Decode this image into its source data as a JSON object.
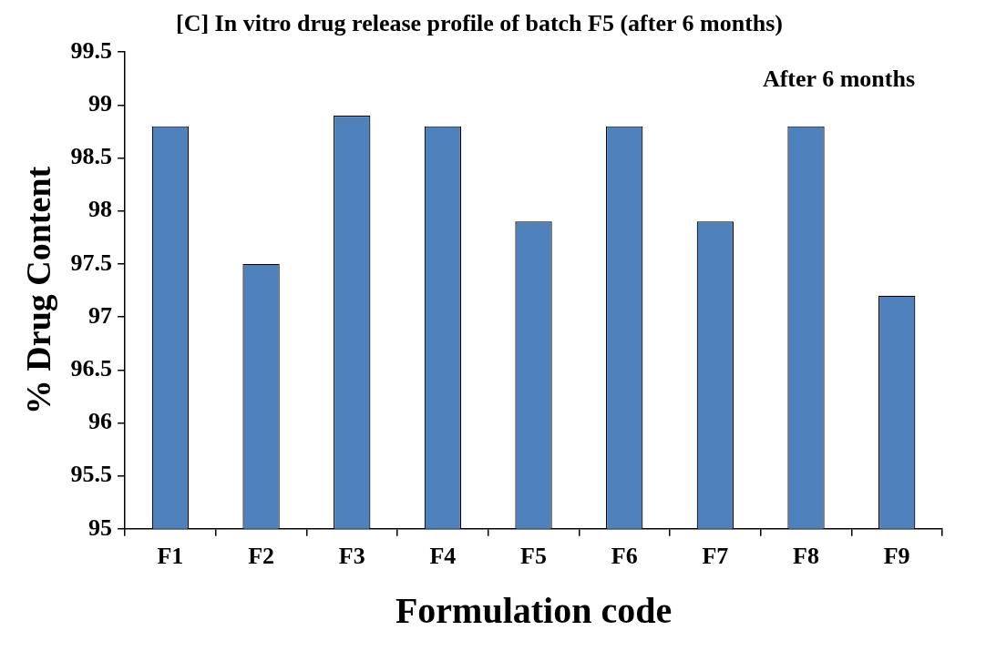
{
  "chart_data": {
    "type": "bar",
    "title": "[C] In vitro drug release profile of batch F5 (after 6 months)",
    "xlabel": "Formulation code",
    "ylabel": "% Drug Content",
    "categories": [
      "F1",
      "F2",
      "F3",
      "F4",
      "F5",
      "F6",
      "F7",
      "F8",
      "F9"
    ],
    "values": [
      98.8,
      97.5,
      98.9,
      98.8,
      97.9,
      98.8,
      97.9,
      98.8,
      97.2
    ],
    "color": "#4f81bd",
    "ylim": [
      95,
      99.5
    ],
    "yticks": [
      95,
      95.5,
      96,
      96.5,
      97,
      97.5,
      98,
      98.5,
      99,
      99.5
    ],
    "annotations": [
      "After 6 months"
    ]
  }
}
